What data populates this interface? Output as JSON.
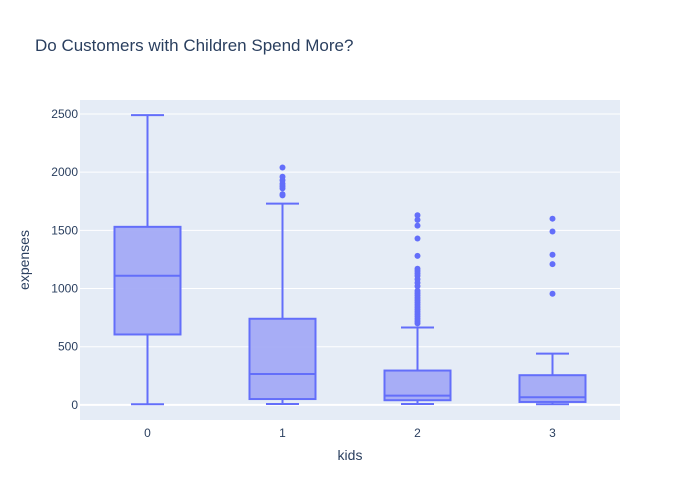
{
  "chart_data": {
    "type": "box",
    "title": "Do Customers with Children Spend More?",
    "xlabel": "kids",
    "ylabel": "expenses",
    "categories": [
      "0",
      "1",
      "2",
      "3"
    ],
    "ylim": [
      -130,
      2620
    ],
    "yticks": [
      0,
      500,
      1000,
      1500,
      2000,
      2500
    ],
    "grid": true,
    "legend": "none",
    "colors": {
      "line": "#636efa",
      "fill": "#a3aaf5",
      "plot_bg": "#e5ecf6",
      "grid": "#ffffff",
      "text": "#2a3f5f"
    },
    "boxes": [
      {
        "category": "0",
        "min": 5,
        "q1": 605,
        "median": 1110,
        "q3": 1530,
        "max": 2490,
        "outliers": []
      },
      {
        "category": "1",
        "min": 8,
        "q1": 50,
        "median": 265,
        "q3": 740,
        "max": 1730,
        "outliers": [
          1800,
          1810,
          1860,
          1880,
          1900,
          1930,
          1960,
          2040
        ]
      },
      {
        "category": "2",
        "min": 8,
        "q1": 40,
        "median": 80,
        "q3": 295,
        "max": 665,
        "outliers": [
          700,
          720,
          740,
          760,
          780,
          800,
          820,
          840,
          860,
          880,
          900,
          920,
          940,
          960,
          980,
          1020,
          1050,
          1080,
          1110,
          1130,
          1150,
          1170,
          1280,
          1430,
          1540,
          1590,
          1630
        ]
      },
      {
        "category": "3",
        "min": 5,
        "q1": 25,
        "median": 65,
        "q3": 255,
        "max": 440,
        "outliers": [
          955,
          1210,
          1290,
          1490,
          1600
        ]
      }
    ]
  }
}
